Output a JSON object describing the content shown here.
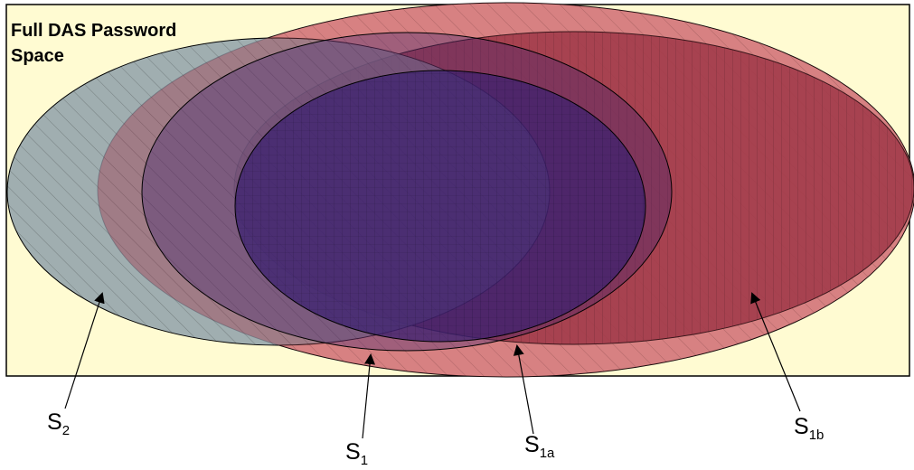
{
  "diagram": {
    "title_line1": "Full DAS Password",
    "title_line2": "Space",
    "sets": [
      {
        "id": "S2",
        "main": "S",
        "sub": "2"
      },
      {
        "id": "S1",
        "main": "S",
        "sub": "1"
      },
      {
        "id": "S1a",
        "main": "S",
        "sub": "1a"
      },
      {
        "id": "S1b",
        "main": "S",
        "sub": "1b"
      }
    ],
    "colors": {
      "background": "#fffbd2",
      "s1": "#f3a7a0",
      "s2": "#8b9ca8",
      "s1a": "#3a2070",
      "s1b": "#a23b4a"
    }
  }
}
